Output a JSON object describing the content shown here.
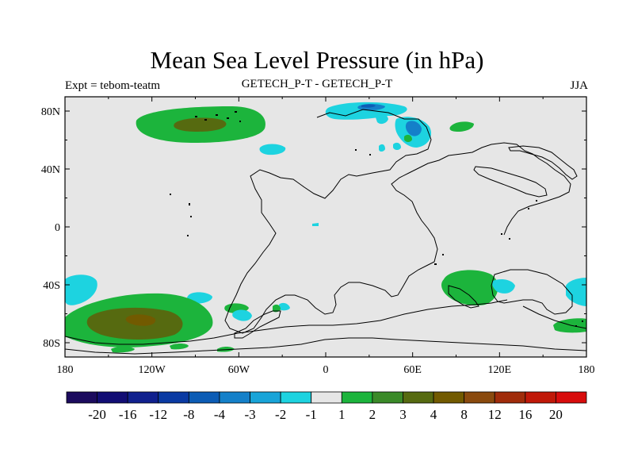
{
  "header": {
    "title": "Mean Sea Level Pressure (in hPa)",
    "left_label": "Expt = tebom-teatm",
    "center_label": "GETECH_P-T - GETECH_P-T",
    "right_label": "JJA"
  },
  "axes": {
    "lat_ticks": [
      {
        "value": 80,
        "label": "80N"
      },
      {
        "value": 40,
        "label": "40N"
      },
      {
        "value": 0,
        "label": "0"
      },
      {
        "value": -40,
        "label": "40S"
      },
      {
        "value": -80,
        "label": "80S"
      }
    ],
    "lon_ticks": [
      {
        "value": -180,
        "label": "180"
      },
      {
        "value": -120,
        "label": "120W"
      },
      {
        "value": -60,
        "label": "60W"
      },
      {
        "value": 0,
        "label": "0"
      },
      {
        "value": 60,
        "label": "60E"
      },
      {
        "value": 120,
        "label": "120E"
      },
      {
        "value": 180,
        "label": "180"
      }
    ]
  },
  "colorbar": {
    "colors": [
      "#1c0b5e",
      "#120d74",
      "#10208e",
      "#0a3aa3",
      "#0c5cb5",
      "#1480c9",
      "#18a4d8",
      "#1dd3e0",
      "#e6e6e6",
      "#1cb43c",
      "#3a8a28",
      "#566a10",
      "#725a00",
      "#8a4a0e",
      "#a02c0a",
      "#c01808",
      "#d80c0c"
    ],
    "labels": [
      "-20",
      "-16",
      "-12",
      "-8",
      "-4",
      "-3",
      "-2",
      "-1",
      "1",
      "2",
      "3",
      "4",
      "8",
      "12",
      "16",
      "20"
    ]
  },
  "colors": {
    "background_field": "#e6e6e6",
    "green": "#1cb43c",
    "olive": "#566a10",
    "brown": "#725a00",
    "cyan": "#1dd3e0",
    "mid_blue": "#1480c9",
    "dark_blue": "#0c5cb5"
  }
}
